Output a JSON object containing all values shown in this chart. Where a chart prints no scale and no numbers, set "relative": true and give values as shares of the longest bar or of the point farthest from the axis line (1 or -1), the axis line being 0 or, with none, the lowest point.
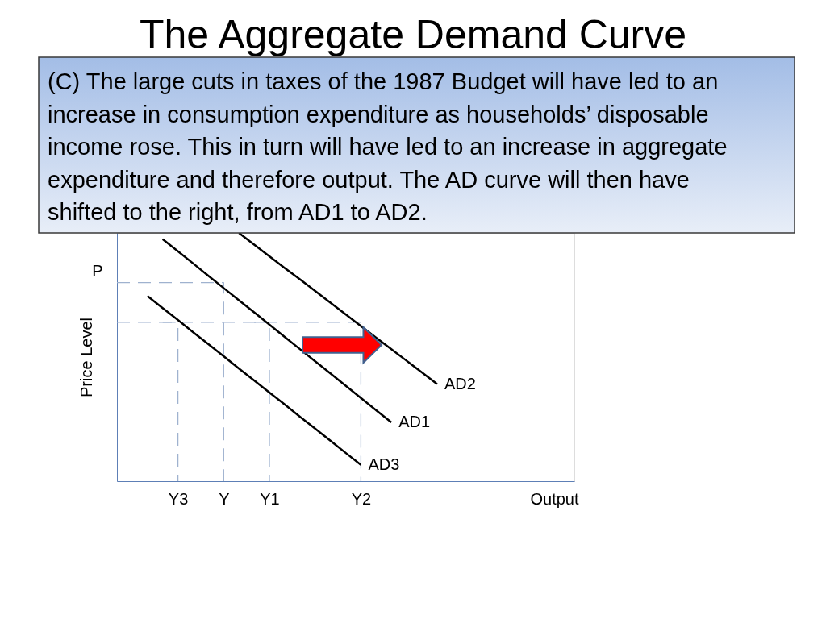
{
  "chart_data": {
    "type": "line",
    "title": "The Aggregate Demand Curve",
    "xlabel": "Output",
    "ylabel": "Price Level",
    "annotations": [
      "(C) The large cuts in taxes of the 1987 Budget will have led to an increase in consumption expenditure as households’ disposable income rose. This in turn will have led to an increase in aggregate expenditure and therefore output.  The AD curve will then have shifted to the right, from AD1 to AD2.",
      "P"
    ],
    "relative": true,
    "categories": [
      null,
      null,
      null,
      null,
      "Y3",
      null,
      null,
      "Y",
      null,
      null,
      "Y1",
      null,
      null,
      null,
      null,
      null,
      "Y2",
      null,
      null,
      null,
      null,
      null,
      null,
      null,
      null,
      null,
      null,
      null,
      null,
      null,
      null
    ],
    "series": [
      {
        "type": "step",
        "color": "#9fb2cf",
        "line_style": "dashed",
        "values": [
          0.8,
          0.8,
          0.8,
          0.8,
          0.8,
          0.8,
          0.8,
          0,
          null,
          null,
          null,
          null,
          null,
          null,
          null,
          null,
          null,
          null,
          null,
          null,
          null,
          null,
          null,
          null,
          null,
          null,
          null,
          null,
          null,
          null,
          null
        ]
      },
      {
        "type": "step",
        "color": "#9fb2cf",
        "line_style": "dashed",
        "values": [
          0.64,
          0.64,
          0.64,
          0.64,
          0.64,
          0.64,
          0.64,
          0.64,
          0.64,
          0.64,
          0.64,
          0.64,
          0.64,
          0.64,
          0.64,
          0.64,
          0,
          null,
          null,
          null,
          null,
          null,
          null,
          null,
          null,
          null,
          null,
          null,
          null,
          null,
          null
        ]
      },
      {
        "type": "step",
        "color": "#9fb2cf",
        "line_style": "dashed",
        "values": [
          null,
          null,
          null,
          0.64,
          0,
          null,
          null,
          null,
          null,
          null,
          null,
          null,
          null,
          null,
          null,
          null,
          null,
          null,
          null,
          null,
          null,
          null,
          null,
          null,
          null,
          null,
          null,
          null,
          null,
          null,
          null
        ]
      },
      {
        "type": "step",
        "color": "#9fb2cf",
        "line_style": "dashed",
        "values": [
          null,
          null,
          null,
          null,
          null,
          null,
          null,
          null,
          null,
          0.64,
          0,
          null,
          null,
          null,
          null,
          null,
          null,
          null,
          null,
          null,
          null,
          null,
          null,
          null,
          null,
          null,
          null,
          null,
          null,
          null,
          null
        ]
      },
      {
        "name": "AD1",
        "color": "#000000",
        "line_style": "solid",
        "values": [
          null,
          null,
          null,
          0.975,
          0.926,
          0.877,
          0.827,
          0.778,
          0.729,
          0.68,
          0.631,
          0.581,
          0.532,
          0.483,
          0.434,
          0.385,
          0.335,
          0.286,
          0.237,
          null,
          null,
          null,
          null,
          null,
          null,
          null,
          null,
          null,
          null,
          null,
          null
        ]
      },
      {
        "name": "AD2",
        "color": "#000000",
        "line_style": "solid",
        "values": [
          null,
          null,
          null,
          null,
          null,
          null,
          null,
          null,
          1,
          0.953,
          0.906,
          0.859,
          0.813,
          0.766,
          0.719,
          0.672,
          0.625,
          0.578,
          0.532,
          0.485,
          0.438,
          0.391,
          null,
          null,
          null,
          null,
          null,
          null,
          null,
          null,
          null
        ]
      },
      {
        "name": "AD3",
        "color": "#000000",
        "line_style": "solid",
        "values": [
          null,
          null,
          0.746,
          0.697,
          0.649,
          0.6,
          0.552,
          0.503,
          0.454,
          0.406,
          0.357,
          0.309,
          0.26,
          0.212,
          0.163,
          0.114,
          0.066,
          null,
          null,
          null,
          null,
          null,
          null,
          null,
          null,
          null,
          null,
          null,
          null,
          null,
          null
        ]
      }
    ]
  }
}
